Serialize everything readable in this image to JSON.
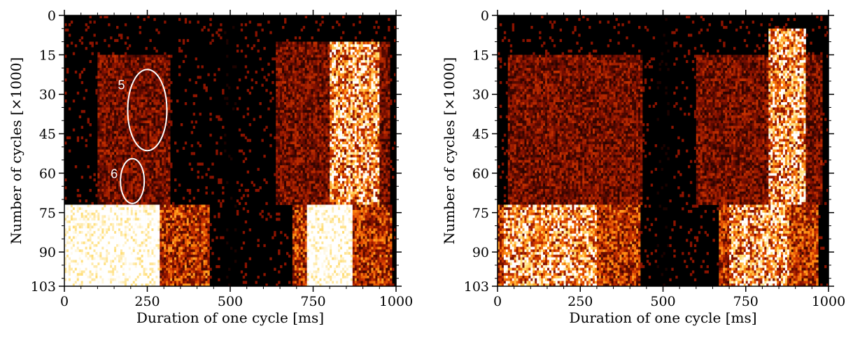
{
  "chart_data": [
    {
      "type": "heatmap",
      "xlabel": "Duration of one cycle [ms]",
      "ylabel": "Number of cycles [×1000]",
      "xlim": [
        0,
        1000
      ],
      "ylim": [
        0,
        103
      ],
      "x_ticks": [
        "0",
        "250",
        "500",
        "750",
        "1000"
      ],
      "y_ticks": [
        "0",
        "15",
        "30",
        "45",
        "60",
        "75",
        "90",
        "103"
      ],
      "colormap": [
        "#000000",
        "#3a0500",
        "#8a1200",
        "#d63a00",
        "#ff8a10",
        "#ffd860",
        "#ffffff"
      ],
      "intensity_regions": [
        {
          "x": [
            0,
            290
          ],
          "y": [
            72,
            103
          ],
          "level": "saturated"
        },
        {
          "x": [
            0,
            440
          ],
          "y": [
            72,
            103
          ],
          "level": "medium"
        },
        {
          "x": [
            730,
            870
          ],
          "y": [
            72,
            103
          ],
          "level": "saturated"
        },
        {
          "x": [
            690,
            990
          ],
          "y": [
            72,
            103
          ],
          "level": "medium"
        },
        {
          "x": [
            800,
            950
          ],
          "y": [
            10,
            72
          ],
          "level": "high"
        },
        {
          "x": [
            640,
            980
          ],
          "y": [
            10,
            72
          ],
          "level": "sparse"
        },
        {
          "x": [
            100,
            320
          ],
          "y": [
            15,
            72
          ],
          "level": "sparse"
        },
        {
          "x": [
            480,
            520
          ],
          "y": [
            0,
            103
          ],
          "level": "dark"
        }
      ],
      "annotations": [
        {
          "label": "5",
          "x": 250,
          "y": 36
        },
        {
          "label": "6",
          "x": 205,
          "y": 63
        }
      ]
    },
    {
      "type": "heatmap",
      "xlabel": "Duration of one cycle [ms]",
      "ylabel": "Number of cycles [×1000]",
      "xlim": [
        0,
        1000
      ],
      "ylim": [
        0,
        103
      ],
      "x_ticks": [
        "0",
        "250",
        "500",
        "750",
        "1000"
      ],
      "y_ticks": [
        "0",
        "15",
        "30",
        "45",
        "60",
        "75",
        "90",
        "103"
      ],
      "colormap": [
        "#000000",
        "#3a0500",
        "#8a1200",
        "#d63a00",
        "#ff8a10",
        "#ffd860",
        "#ffffff"
      ],
      "intensity_regions": [
        {
          "x": [
            20,
            300
          ],
          "y": [
            72,
            103
          ],
          "level": "high"
        },
        {
          "x": [
            0,
            430
          ],
          "y": [
            72,
            103
          ],
          "level": "medium"
        },
        {
          "x": [
            700,
            880
          ],
          "y": [
            72,
            103
          ],
          "level": "high"
        },
        {
          "x": [
            670,
            970
          ],
          "y": [
            72,
            103
          ],
          "level": "medium"
        },
        {
          "x": [
            820,
            930
          ],
          "y": [
            5,
            72
          ],
          "level": "high"
        },
        {
          "x": [
            600,
            980
          ],
          "y": [
            15,
            72
          ],
          "level": "sparse"
        },
        {
          "x": [
            30,
            440
          ],
          "y": [
            15,
            72
          ],
          "level": "sparse"
        },
        {
          "x": [
            480,
            520
          ],
          "y": [
            0,
            103
          ],
          "level": "dark"
        }
      ],
      "annotations": []
    }
  ]
}
